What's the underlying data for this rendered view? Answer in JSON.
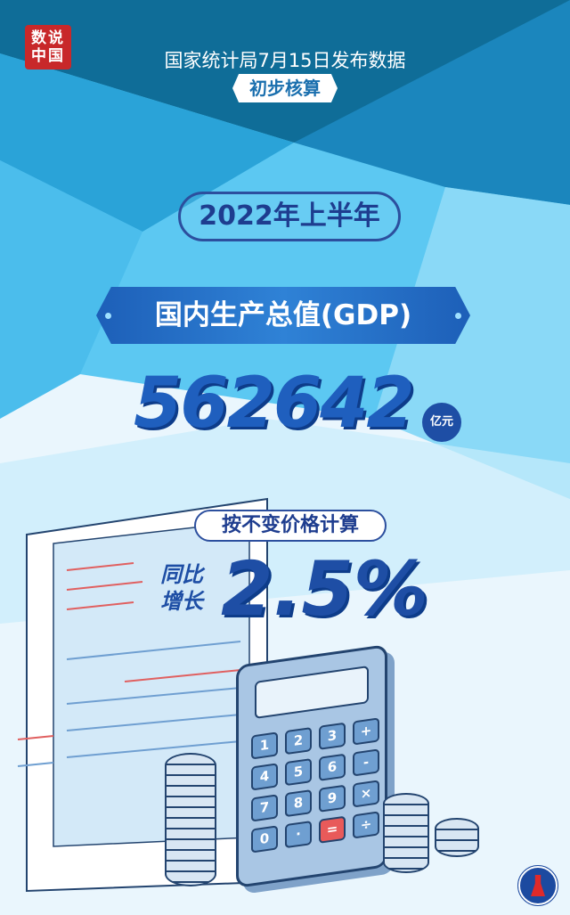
{
  "logo": {
    "text_line1": "数说",
    "text_line2": "中国",
    "color": "#c8282a"
  },
  "header": {
    "title": "国家统计局7月15日发布数据",
    "badge": "初步核算"
  },
  "period": "2022年上半年",
  "indicator": {
    "label": "国内生产总值(GDP)",
    "value": "562642",
    "unit": "亿元"
  },
  "growth": {
    "basis": "按不变价格计算",
    "label_line1": "同比",
    "label_line2": "增长",
    "value": "2.5%"
  },
  "calculator": {
    "keys": [
      "1",
      "2",
      "3",
      "+",
      "4",
      "5",
      "6",
      "-",
      "7",
      "8",
      "9",
      "×",
      "0",
      "·",
      "=",
      "÷"
    ]
  },
  "colors": {
    "primary_blue": "#1e4ea5",
    "dark_band": "#0f6d98",
    "light_bg": "#eaf6fd"
  },
  "footer_logo": "xinhua-logo"
}
